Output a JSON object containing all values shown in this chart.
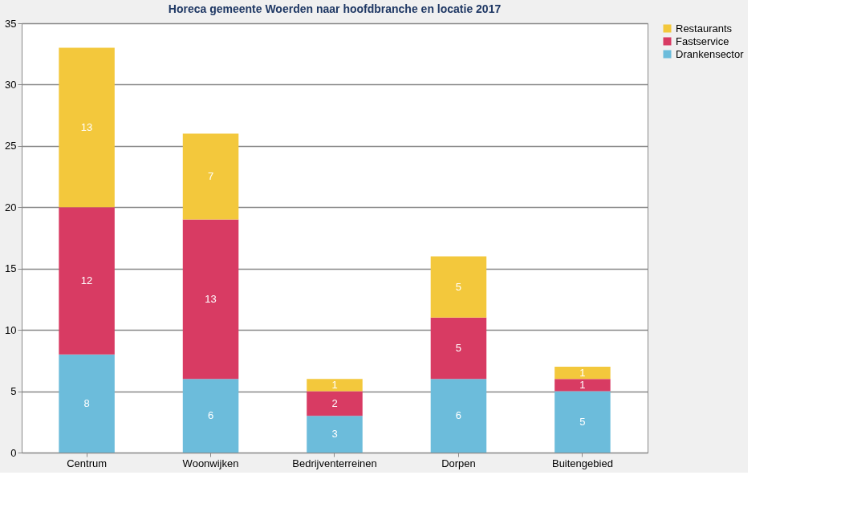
{
  "chart_data": {
    "type": "bar",
    "title": "Horeca gemeente Woerden naar hoofdbranche en locatie 2017",
    "categories": [
      "Centrum",
      "Woonwijken",
      "Bedrijventerreinen",
      "Dorpen",
      "Buitengebied"
    ],
    "stacked": true,
    "series": [
      {
        "name": "Drankensector",
        "color": "#6cbcdb",
        "values": [
          8,
          6,
          3,
          6,
          5
        ]
      },
      {
        "name": "Fastservice",
        "color": "#d83b63",
        "values": [
          12,
          13,
          2,
          5,
          1
        ]
      },
      {
        "name": "Restaurants",
        "color": "#f3c83c",
        "values": [
          13,
          7,
          1,
          5,
          1
        ]
      }
    ],
    "ylim": [
      0,
      35
    ],
    "yticks": [
      0,
      5,
      10,
      15,
      20,
      25,
      30,
      35
    ],
    "grid": "y",
    "legend": "right",
    "data_labels": true
  }
}
